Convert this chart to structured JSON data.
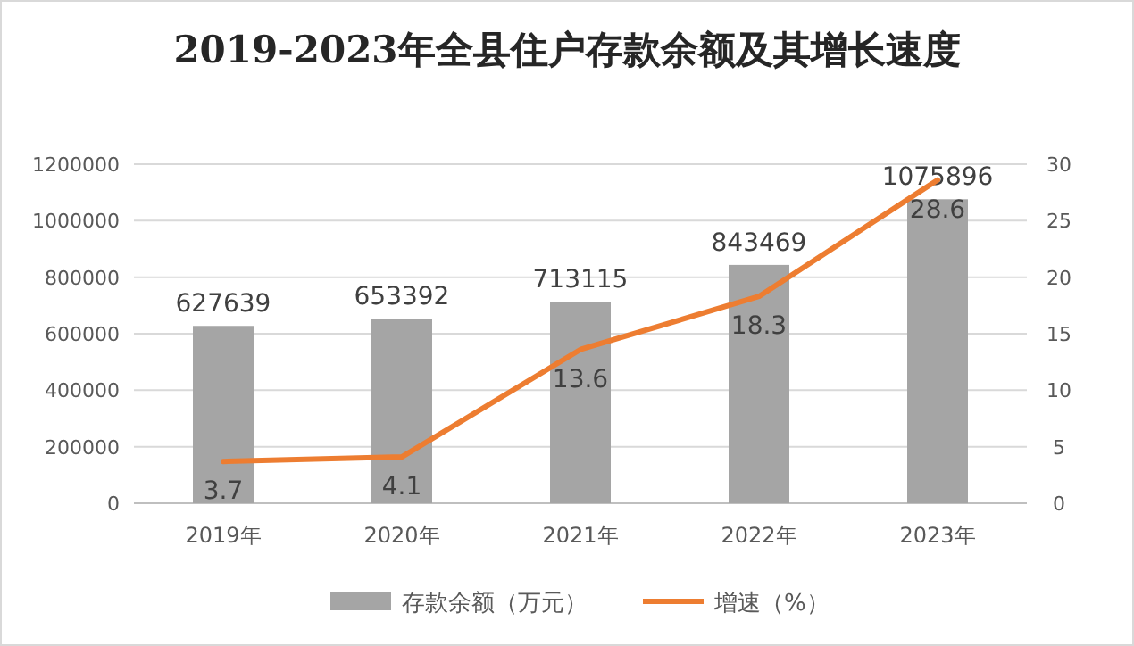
{
  "chart_data": {
    "type": "bar",
    "title": "2019-2023年全县住户存款余额及其增长速度",
    "categories": [
      "2019年",
      "2020年",
      "2021年",
      "2022年",
      "2023年"
    ],
    "series": [
      {
        "name": "存款余额（万元）",
        "color": "#a5a5a5",
        "values": [
          627639,
          653392,
          713115,
          843469,
          1075896
        ]
      },
      {
        "name": "增速（%）",
        "type": "line",
        "axis": "y2",
        "color": "#ed7d31",
        "values": [
          3.7,
          4.1,
          13.6,
          18.3,
          28.6
        ]
      }
    ],
    "ylim": [
      0,
      1200000
    ],
    "yticks": [
      0,
      200000,
      400000,
      600000,
      800000,
      1000000,
      1200000
    ],
    "y2lim": [
      0,
      30
    ],
    "y2ticks": [
      0,
      5,
      10,
      15,
      20,
      25,
      30
    ],
    "grid": "y",
    "legend": "bottom",
    "data_labels": true,
    "marker": "none",
    "line_style": "solid"
  }
}
